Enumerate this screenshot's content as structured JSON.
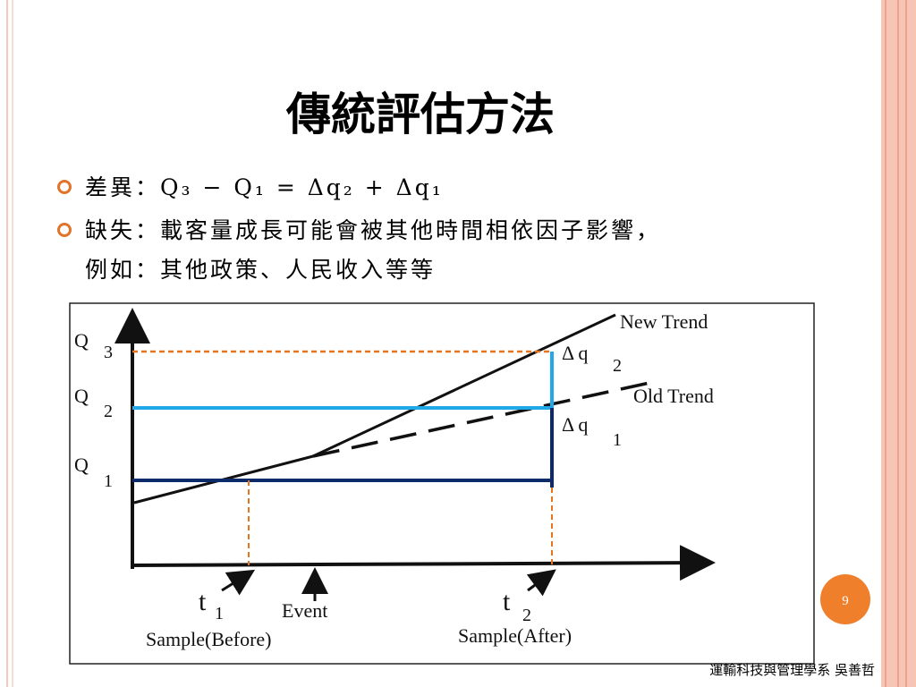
{
  "slide": {
    "title": "傳統評估方法",
    "bullets": [
      {
        "lines": [
          "差異：Q₃ − Q₁ = Δq₂ + Δq₁"
        ]
      },
      {
        "lines": [
          "缺失：載客量成長可能會被其他時間相依因子影響，",
          "例如：其他政策、人民收入等等"
        ]
      }
    ],
    "diagram": {
      "q3": "Q",
      "q3_sub": "3",
      "q2": "Q",
      "q2_sub": "2",
      "q1": "Q",
      "q1_sub": "1",
      "new_trend": "New Trend",
      "old_trend": "Old Trend",
      "dq2": "Δ q",
      "dq2_sub": "2",
      "dq1": "Δ q",
      "dq1_sub": "1",
      "t1": "t",
      "t1_sub": "1",
      "t2": "t",
      "t2_sub": "2",
      "event": "Event",
      "sample_before": "Sample(Before)",
      "sample_after": "Sample(After)"
    },
    "page_number": "9",
    "footer": "運輸科技與管理學系 吳善哲"
  }
}
